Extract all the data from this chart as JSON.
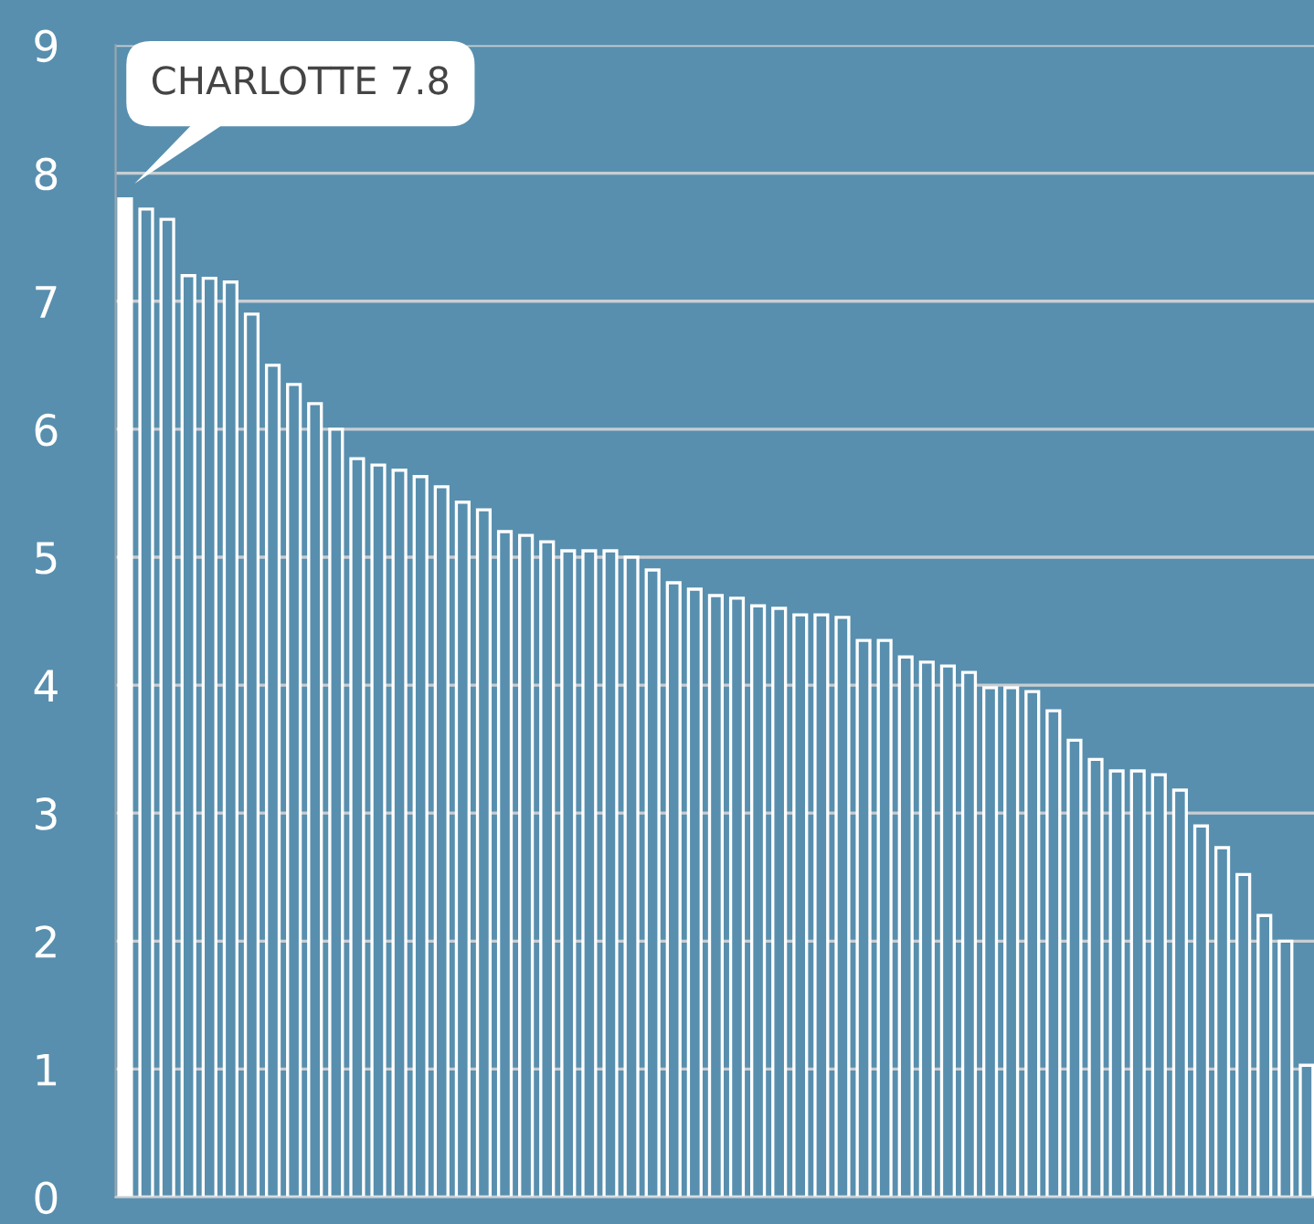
{
  "chart_data": {
    "type": "bar",
    "categories": [
      null,
      null,
      null,
      null,
      null,
      null,
      null,
      null,
      null,
      null,
      null,
      null,
      null,
      null,
      null,
      null,
      null,
      null,
      null,
      null,
      null,
      null,
      null,
      null,
      null,
      null,
      null,
      null,
      null,
      null,
      null,
      null,
      null,
      null,
      null,
      null,
      null,
      null,
      null,
      null,
      null,
      null,
      null,
      null,
      null,
      null,
      null,
      null,
      null,
      null,
      null,
      null,
      null,
      null,
      null,
      null,
      null
    ],
    "values": [
      7.8,
      7.72,
      7.64,
      7.2,
      7.18,
      7.15,
      6.9,
      6.5,
      6.35,
      6.2,
      6.0,
      5.77,
      5.72,
      5.68,
      5.63,
      5.55,
      5.43,
      5.37,
      5.2,
      5.17,
      5.12,
      5.05,
      5.05,
      5.05,
      5.0,
      4.9,
      4.8,
      4.75,
      4.7,
      4.68,
      4.62,
      4.6,
      4.55,
      4.55,
      4.53,
      4.35,
      4.35,
      4.22,
      4.18,
      4.15,
      4.1,
      3.98,
      3.98,
      3.95,
      3.8,
      3.57,
      3.42,
      3.33,
      3.33,
      3.3,
      3.18,
      2.9,
      2.73,
      2.52,
      2.2,
      2.0,
      1.03
    ],
    "colors": [
      "#ffffff",
      "#588fae",
      "#588fae",
      "#588fae",
      "#588fae",
      "#588fae",
      "#588fae",
      "#588fae",
      "#588fae",
      "#588fae",
      "#588fae",
      "#588fae",
      "#588fae",
      "#588fae",
      "#588fae",
      "#588fae",
      "#588fae",
      "#588fae",
      "#588fae",
      "#588fae",
      "#588fae",
      "#588fae",
      "#588fae",
      "#588fae",
      "#588fae",
      "#588fae",
      "#588fae",
      "#588fae",
      "#588fae",
      "#588fae",
      "#588fae",
      "#588fae",
      "#588fae",
      "#588fae",
      "#588fae",
      "#588fae",
      "#588fae",
      "#588fae",
      "#588fae",
      "#588fae",
      "#588fae",
      "#588fae",
      "#588fae",
      "#588fae",
      "#588fae",
      "#588fae",
      "#588fae",
      "#588fae",
      "#588fae",
      "#588fae",
      "#588fae",
      "#588fae",
      "#588fae",
      "#588fae",
      "#588fae",
      "#588fae",
      "#588fae"
    ],
    "ylim": [
      0,
      9
    ],
    "yticks": [
      0,
      1,
      2,
      3,
      4,
      5,
      6,
      7,
      8,
      9
    ],
    "grid": "y",
    "tick_labels": "y",
    "annotations": [
      "CHARLOTTE 7.8"
    ]
  }
}
